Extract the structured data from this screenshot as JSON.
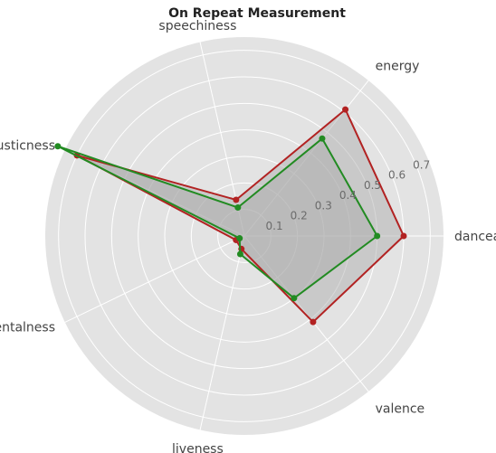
{
  "chart_data": {
    "type": "radar",
    "title": "On Repeat Measurement",
    "axes": [
      "danceability",
      "energy",
      "speechiness",
      "acousticness",
      "instrumentalness",
      "liveness",
      "valence"
    ],
    "rlim": [
      0,
      0.75
    ],
    "rticks": [
      0.1,
      0.2,
      0.3,
      0.4,
      0.5,
      0.6,
      0.7
    ],
    "rtick_labels": [
      "0.1",
      "0.2",
      "0.3",
      "0.4",
      "0.5",
      "0.6",
      "0.7"
    ],
    "grid": true,
    "series": [
      {
        "color": "#b22222",
        "values": [
          0.6,
          0.61,
          0.14,
          0.7,
          0.035,
          0.05,
          0.415
        ]
      },
      {
        "color": "#228b22",
        "values": [
          0.5,
          0.47,
          0.11,
          0.78,
          0.02,
          0.07,
          0.3
        ]
      }
    ],
    "fill_color": "#a9a9a9",
    "background_color": "#e3e3e3"
  }
}
